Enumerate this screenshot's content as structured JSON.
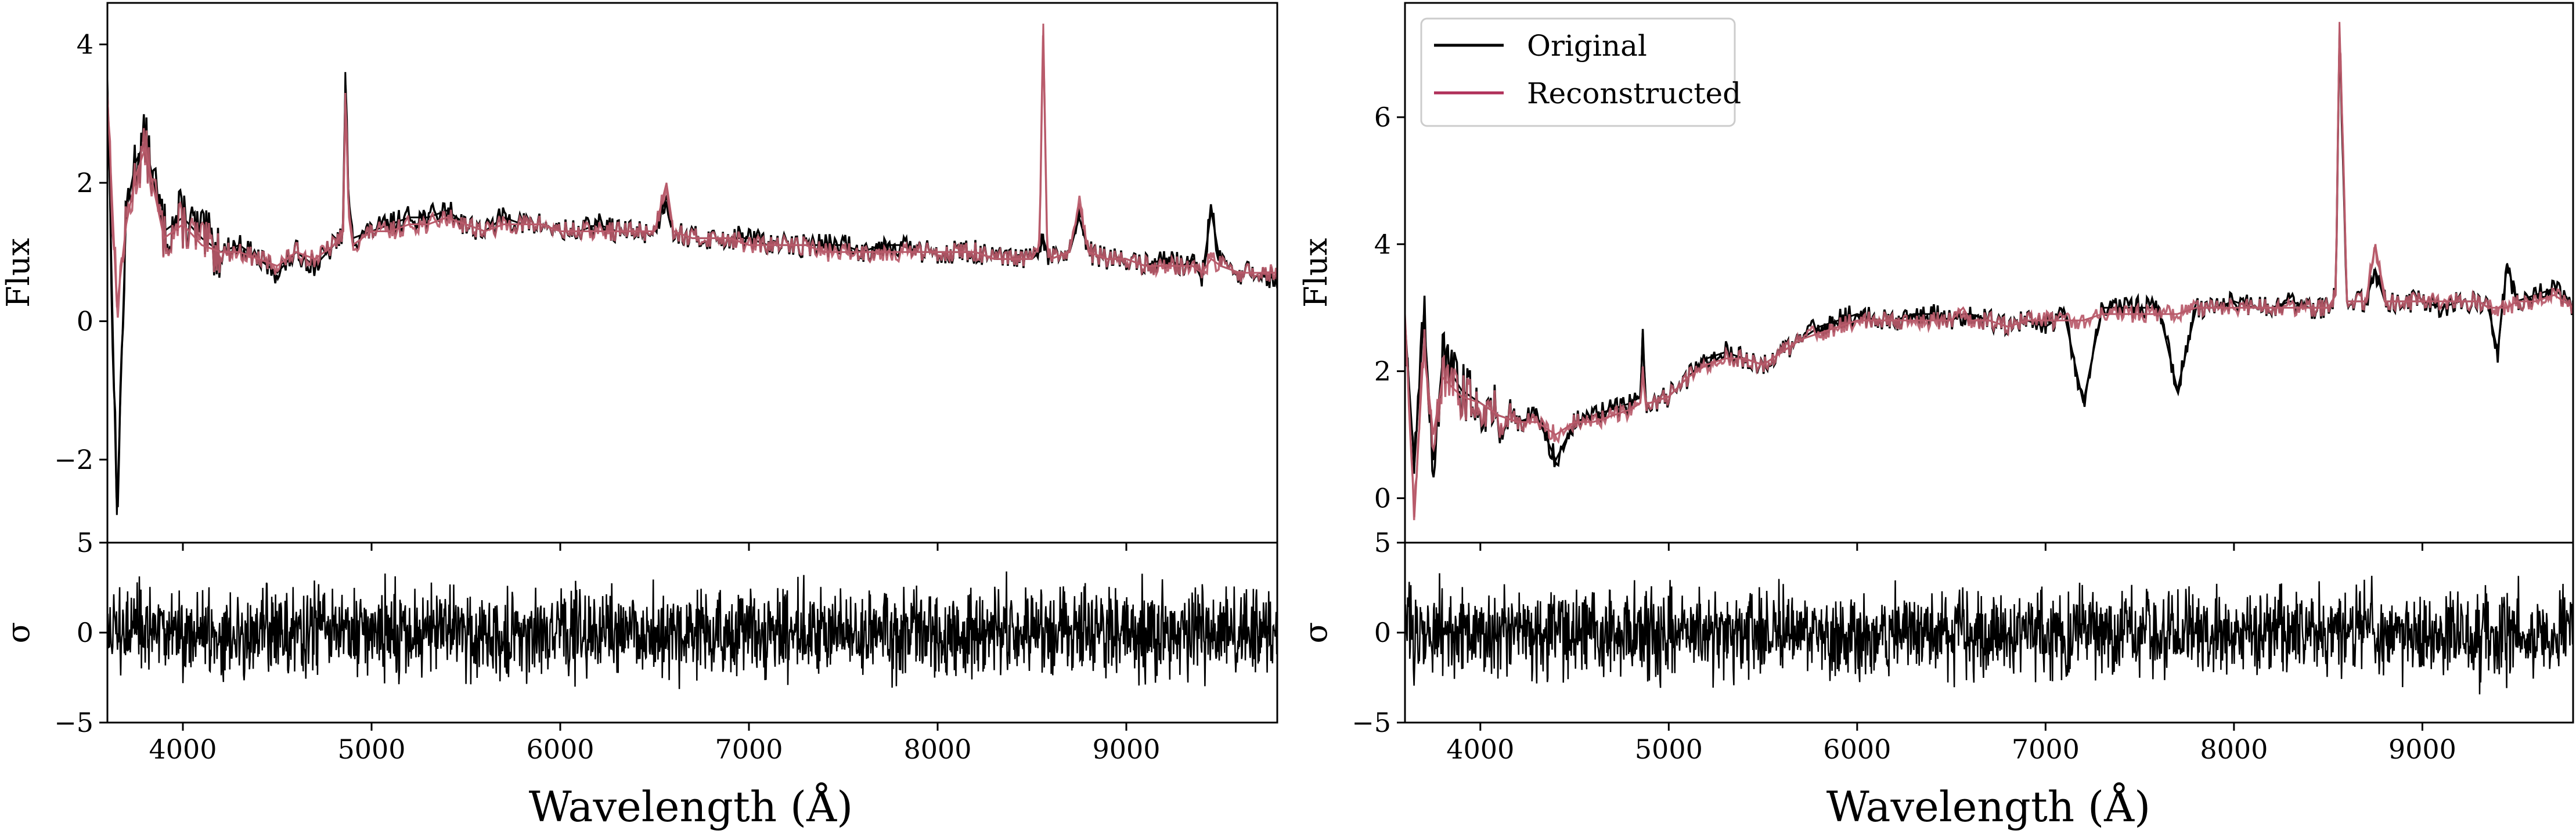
{
  "colors": {
    "original": "#000000",
    "reconstructed": "#b85a6a",
    "legend_reconstructed": "#b0305a",
    "axes": "#000000"
  },
  "legend": {
    "entries": [
      "Original",
      "Reconstructed"
    ],
    "placement": "upper-left of right panel"
  },
  "chart_data": [
    {
      "type": "line",
      "panel": "left-top",
      "ylabel": "Flux",
      "xlim": [
        3600,
        9800
      ],
      "ylim": [
        -3.2,
        4.6
      ],
      "xticks": [
        4000,
        5000,
        6000,
        7000,
        8000,
        9000
      ],
      "yticks": [
        4,
        2,
        0,
        -2
      ],
      "ytick_labels": [
        "4",
        "2",
        "0",
        "−2"
      ],
      "x": [
        3600,
        3650,
        3700,
        3750,
        3800,
        3900,
        4000,
        4100,
        4200,
        4300,
        4400,
        4500,
        4600,
        4700,
        4800,
        4850,
        4861,
        4880,
        4900,
        5000,
        5100,
        5200,
        5300,
        5400,
        5500,
        5600,
        5700,
        5800,
        5900,
        6000,
        6100,
        6200,
        6300,
        6400,
        6500,
        6563,
        6600,
        6700,
        6800,
        6900,
        7000,
        7100,
        7200,
        7300,
        7400,
        7500,
        7600,
        7700,
        7800,
        7900,
        8000,
        8100,
        8200,
        8300,
        8400,
        8500,
        8540,
        8560,
        8580,
        8600,
        8700,
        8750,
        8800,
        8900,
        9000,
        9100,
        9200,
        9300,
        9350,
        9400,
        9450,
        9500,
        9600,
        9700,
        9800
      ],
      "series": [
        {
          "name": "Original",
          "values": [
            3.5,
            -2.8,
            1.6,
            2.3,
            2.6,
            1.3,
            1.5,
            1.2,
            1.0,
            1.1,
            0.9,
            0.7,
            1.0,
            0.8,
            1.1,
            1.3,
            3.6,
            1.6,
            1.2,
            1.3,
            1.4,
            1.5,
            1.5,
            1.6,
            1.4,
            1.3,
            1.5,
            1.4,
            1.4,
            1.3,
            1.3,
            1.4,
            1.3,
            1.3,
            1.3,
            1.8,
            1.3,
            1.2,
            1.2,
            1.2,
            1.2,
            1.1,
            1.1,
            1.1,
            1.1,
            1.1,
            1.0,
            1.1,
            1.1,
            1.0,
            1.0,
            1.0,
            1.0,
            0.9,
            0.9,
            0.9,
            1.0,
            1.2,
            1.0,
            0.9,
            1.0,
            1.5,
            1.0,
            0.9,
            0.9,
            0.8,
            0.9,
            0.8,
            0.9,
            0.6,
            1.6,
            0.8,
            0.7,
            0.7,
            0.6
          ]
        },
        {
          "name": "Reconstructed",
          "values": [
            3.3,
            0.2,
            1.4,
            2.1,
            2.5,
            1.2,
            1.4,
            1.1,
            1.0,
            1.0,
            0.9,
            0.8,
            1.0,
            0.9,
            1.1,
            1.3,
            3.3,
            1.5,
            1.1,
            1.3,
            1.3,
            1.4,
            1.4,
            1.5,
            1.4,
            1.3,
            1.4,
            1.4,
            1.4,
            1.3,
            1.3,
            1.3,
            1.3,
            1.3,
            1.3,
            2.0,
            1.3,
            1.2,
            1.2,
            1.2,
            1.1,
            1.1,
            1.1,
            1.1,
            1.0,
            1.0,
            1.0,
            1.0,
            1.0,
            1.0,
            1.0,
            1.0,
            1.0,
            0.9,
            0.9,
            0.9,
            1.1,
            4.3,
            1.1,
            0.9,
            1.0,
            1.7,
            1.0,
            0.9,
            0.9,
            0.8,
            0.8,
            0.8,
            0.8,
            0.7,
            0.9,
            0.8,
            0.7,
            0.7,
            0.7
          ]
        }
      ]
    },
    {
      "type": "line",
      "panel": "left-bottom",
      "ylabel": "σ",
      "xlabel": "Wavelength (Å)",
      "xlim": [
        3600,
        9800
      ],
      "ylim": [
        -5,
        5
      ],
      "yticks": [
        5,
        0,
        -5
      ],
      "ytick_labels": [
        "5",
        "0",
        "−5"
      ],
      "xticks": [
        4000,
        5000,
        6000,
        7000,
        8000,
        9000
      ],
      "xtick_labels": [
        "4000",
        "5000",
        "6000",
        "7000",
        "8000",
        "9000"
      ],
      "noise_amplitude": 1.2
    },
    {
      "type": "line",
      "panel": "right-top",
      "ylabel": "Flux",
      "xlim": [
        3600,
        9800
      ],
      "ylim": [
        -0.7,
        7.8
      ],
      "xticks": [
        4000,
        5000,
        6000,
        7000,
        8000,
        9000
      ],
      "yticks": [
        6,
        4,
        2,
        0
      ],
      "ytick_labels": [
        "6",
        "4",
        "2",
        "0"
      ],
      "x": [
        3600,
        3650,
        3700,
        3750,
        3800,
        3900,
        4000,
        4100,
        4200,
        4300,
        4400,
        4500,
        4600,
        4700,
        4800,
        4850,
        4861,
        4880,
        4900,
        5000,
        5100,
        5200,
        5300,
        5400,
        5500,
        5600,
        5700,
        5800,
        5900,
        6000,
        6100,
        6200,
        6300,
        6400,
        6500,
        6563,
        6600,
        6700,
        6800,
        6900,
        7000,
        7100,
        7200,
        7300,
        7400,
        7500,
        7600,
        7700,
        7800,
        7900,
        8000,
        8100,
        8200,
        8300,
        8400,
        8500,
        8540,
        8560,
        8580,
        8600,
        8700,
        8750,
        8800,
        8900,
        9000,
        9100,
        9200,
        9300,
        9350,
        9400,
        9450,
        9500,
        9600,
        9700,
        9800
      ],
      "series": [
        {
          "name": "Original",
          "values": [
            2.8,
            0.5,
            2.9,
            0.6,
            2.2,
            1.7,
            1.5,
            1.3,
            1.2,
            1.3,
            0.6,
            1.2,
            1.3,
            1.4,
            1.5,
            1.6,
            2.6,
            1.5,
            1.5,
            1.6,
            1.9,
            2.2,
            2.3,
            2.2,
            2.1,
            2.3,
            2.5,
            2.7,
            2.8,
            2.9,
            2.8,
            2.8,
            2.9,
            2.9,
            2.8,
            2.9,
            2.9,
            2.8,
            2.7,
            2.8,
            2.7,
            2.9,
            1.5,
            3.0,
            3.0,
            3.0,
            3.0,
            1.7,
            3.0,
            3.0,
            3.1,
            3.0,
            3.0,
            3.1,
            3.0,
            3.0,
            3.2,
            7.4,
            5.2,
            3.1,
            3.1,
            3.6,
            3.1,
            3.1,
            3.1,
            3.0,
            3.1,
            3.1,
            3.0,
            2.3,
            3.7,
            3.1,
            3.2,
            3.3,
            3.0
          ]
        },
        {
          "name": "Reconstructed",
          "values": [
            2.9,
            -0.3,
            2.4,
            1.0,
            1.9,
            1.6,
            1.5,
            1.3,
            1.2,
            1.2,
            1.0,
            1.2,
            1.2,
            1.3,
            1.4,
            1.5,
            2.0,
            1.5,
            1.5,
            1.6,
            1.9,
            2.1,
            2.2,
            2.2,
            2.1,
            2.3,
            2.5,
            2.6,
            2.7,
            2.8,
            2.8,
            2.8,
            2.8,
            2.8,
            2.8,
            3.0,
            2.8,
            2.8,
            2.7,
            2.8,
            2.8,
            2.8,
            2.8,
            2.9,
            2.9,
            2.9,
            2.9,
            2.9,
            3.0,
            3.0,
            3.0,
            3.0,
            3.0,
            3.0,
            3.0,
            3.0,
            3.2,
            7.5,
            5.4,
            3.1,
            3.1,
            4.0,
            3.1,
            3.1,
            3.1,
            3.1,
            3.1,
            3.1,
            3.0,
            3.0,
            3.0,
            3.1,
            3.1,
            3.2,
            3.0
          ]
        }
      ]
    },
    {
      "type": "line",
      "panel": "right-bottom",
      "ylabel": "σ",
      "xlabel": "Wavelength (Å)",
      "xlim": [
        3600,
        9800
      ],
      "ylim": [
        -5,
        5
      ],
      "yticks": [
        5,
        0,
        -5
      ],
      "ytick_labels": [
        "5",
        "0",
        "−5"
      ],
      "xticks": [
        4000,
        5000,
        6000,
        7000,
        8000,
        9000
      ],
      "xtick_labels": [
        "4000",
        "5000",
        "6000",
        "7000",
        "8000",
        "9000"
      ],
      "noise_amplitude": 1.2
    }
  ]
}
